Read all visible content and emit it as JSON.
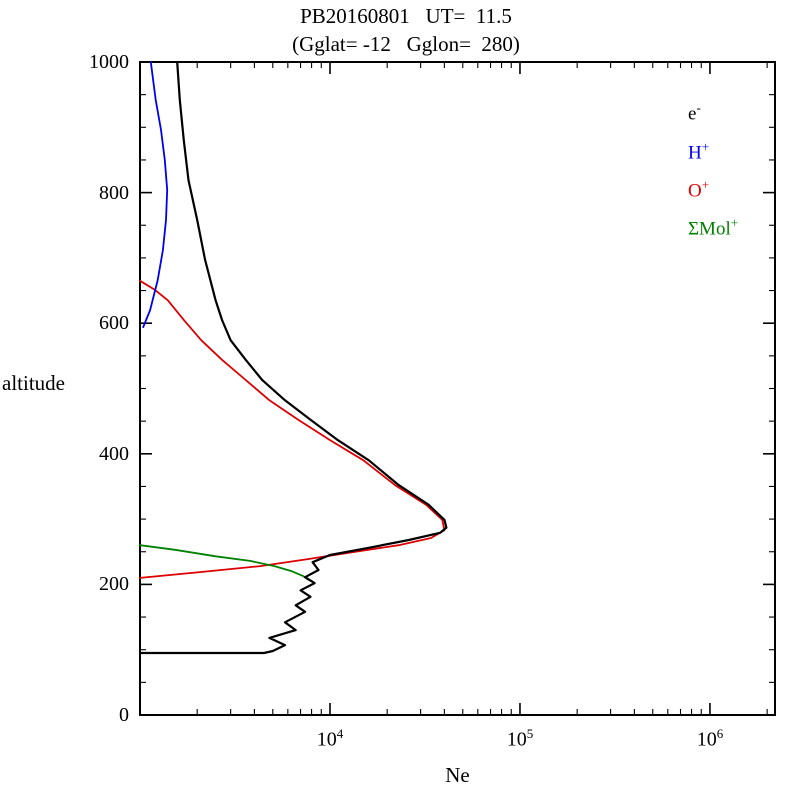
{
  "chart_data": {
    "type": "line",
    "title": "PB20160801   UT=  11.5",
    "subtitle": "(Gglat= -12   Gglon=  280)",
    "xlabel": "Ne",
    "ylabel": "altitude",
    "x_scale": "log",
    "xlim": [
      1000,
      2200000
    ],
    "ylim": [
      0,
      1000
    ],
    "y_ticks": [
      0,
      200,
      400,
      600,
      800,
      1000
    ],
    "y_minor_step": 50,
    "x_major_tick_labels": [
      {
        "base": "10",
        "exp": "4",
        "value": 10000
      },
      {
        "base": "10",
        "exp": "5",
        "value": 100000
      },
      {
        "base": "10",
        "exp": "6",
        "value": 1000000
      }
    ],
    "grid": false,
    "legend_position": "upper right inside",
    "legend": [
      {
        "label": "e",
        "sup": "-",
        "color": "#000000"
      },
      {
        "label": "H",
        "sup": "+",
        "color": "#0000ee"
      },
      {
        "label": "O",
        "sup": "+",
        "color": "#dd0000"
      },
      {
        "label": "ΣMol",
        "sup": "+",
        "color": "#008000"
      }
    ],
    "series": [
      {
        "name": "O+",
        "color": "#dd0000",
        "width": 1.8,
        "points": [
          [
            1000,
            210
          ],
          [
            2100,
            219
          ],
          [
            4300,
            228
          ],
          [
            7800,
            239
          ],
          [
            13500,
            250
          ],
          [
            23000,
            260
          ],
          [
            34000,
            271
          ],
          [
            40000,
            283
          ],
          [
            39000,
            299
          ],
          [
            32000,
            322
          ],
          [
            22000,
            352
          ],
          [
            15000,
            390
          ],
          [
            10000,
            421
          ],
          [
            6800,
            452
          ],
          [
            4800,
            482
          ],
          [
            3600,
            513
          ],
          [
            2700,
            544
          ],
          [
            2100,
            574
          ],
          [
            1700,
            605
          ],
          [
            1400,
            635
          ],
          [
            1200,
            651
          ],
          [
            1000,
            665
          ]
        ]
      },
      {
        "name": "Mol+",
        "color": "#008000",
        "width": 1.8,
        "points": [
          [
            1000,
            260
          ],
          [
            1530,
            253
          ],
          [
            2500,
            243
          ],
          [
            3800,
            236
          ],
          [
            5100,
            228
          ],
          [
            6300,
            220
          ],
          [
            7200,
            213
          ],
          [
            7700,
            207
          ]
        ]
      },
      {
        "name": "H+",
        "color": "#0000ee",
        "width": 1.8,
        "points": [
          [
            1040,
            594
          ],
          [
            1130,
            620
          ],
          [
            1240,
            666
          ],
          [
            1320,
            712
          ],
          [
            1370,
            758
          ],
          [
            1390,
            804
          ],
          [
            1350,
            850
          ],
          [
            1290,
            896
          ],
          [
            1210,
            942
          ],
          [
            1140,
            1000
          ]
        ]
      },
      {
        "name": "e-",
        "color": "#000000",
        "width": 2.2,
        "points": [
          [
            1000,
            95
          ],
          [
            4500,
            95
          ],
          [
            5000,
            98
          ],
          [
            5800,
            107
          ],
          [
            4800,
            118
          ],
          [
            6600,
            130
          ],
          [
            5800,
            142
          ],
          [
            7400,
            158
          ],
          [
            6600,
            168
          ],
          [
            7900,
            181
          ],
          [
            7000,
            191
          ],
          [
            8300,
            202
          ],
          [
            7400,
            211
          ],
          [
            8700,
            222
          ],
          [
            8100,
            234
          ],
          [
            10000,
            245
          ],
          [
            16000,
            256
          ],
          [
            26000,
            268
          ],
          [
            38000,
            279
          ],
          [
            41000,
            287
          ],
          [
            40000,
            299
          ],
          [
            33000,
            322
          ],
          [
            23000,
            352
          ],
          [
            16000,
            390
          ],
          [
            11000,
            421
          ],
          [
            7900,
            452
          ],
          [
            5800,
            482
          ],
          [
            4400,
            513
          ],
          [
            3600,
            544
          ],
          [
            3000,
            574
          ],
          [
            2700,
            605
          ],
          [
            2500,
            635
          ],
          [
            2200,
            697
          ],
          [
            2000,
            758
          ],
          [
            1800,
            819
          ],
          [
            1700,
            880
          ],
          [
            1620,
            942
          ],
          [
            1570,
            1000
          ]
        ]
      }
    ]
  }
}
